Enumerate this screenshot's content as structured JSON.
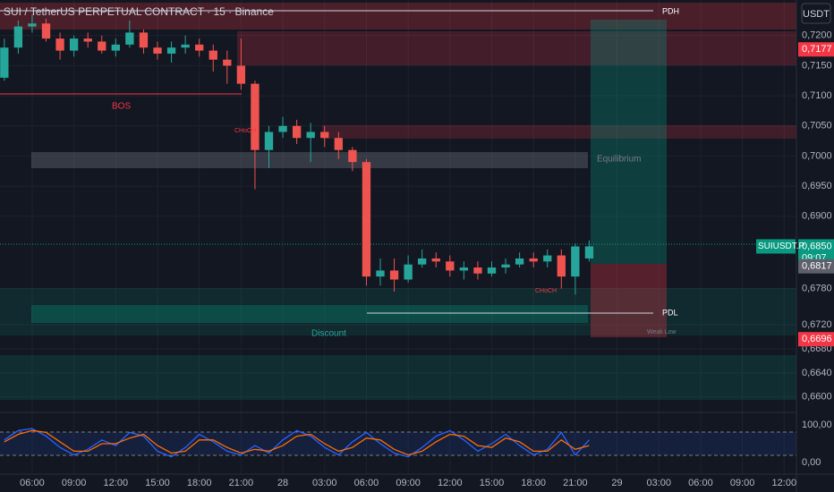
{
  "chart_data": [
    {
      "type": "candlestick",
      "title": "SUI / TetherUS PERPETUAL CONTRACT · 15 · Binance",
      "unit": "USDT",
      "symbol": "SUIUSDT.P",
      "countdown": "09:07",
      "up_color": "#26a69a",
      "down_color": "#ef5350",
      "x": [
        4,
        5,
        6,
        7,
        8,
        9,
        10,
        11,
        12,
        13,
        14,
        15,
        16,
        17,
        18,
        19,
        20,
        21,
        22,
        23,
        24,
        25,
        26,
        27,
        28,
        29,
        30,
        31,
        32,
        33,
        34,
        35,
        36,
        37,
        38,
        39,
        40,
        41,
        42,
        43,
        44,
        45,
        46
      ],
      "open": [
        0.713,
        0.718,
        0.7215,
        0.722,
        0.7195,
        0.7175,
        0.7195,
        0.719,
        0.7175,
        0.7185,
        0.7205,
        0.718,
        0.717,
        0.718,
        0.7185,
        0.7175,
        0.716,
        0.715,
        0.712,
        0.701,
        0.704,
        0.705,
        0.703,
        0.704,
        0.703,
        0.701,
        0.699,
        0.68,
        0.681,
        0.6795,
        0.682,
        0.683,
        0.6825,
        0.681,
        0.6815,
        0.6805,
        0.6815,
        0.682,
        0.683,
        0.6825,
        0.6835,
        0.68,
        0.683
      ],
      "high": [
        0.7195,
        0.7225,
        0.7235,
        0.7228,
        0.7205,
        0.72,
        0.7205,
        0.72,
        0.7195,
        0.7225,
        0.721,
        0.719,
        0.719,
        0.72,
        0.7195,
        0.7185,
        0.7175,
        0.7195,
        0.7125,
        0.705,
        0.7065,
        0.706,
        0.7055,
        0.705,
        0.704,
        0.7015,
        0.6995,
        0.683,
        0.683,
        0.6835,
        0.6845,
        0.684,
        0.6835,
        0.6825,
        0.6825,
        0.6825,
        0.683,
        0.684,
        0.684,
        0.6845,
        0.6845,
        0.6855,
        0.686
      ],
      "low": [
        0.7125,
        0.717,
        0.7205,
        0.719,
        0.716,
        0.7165,
        0.718,
        0.717,
        0.7165,
        0.718,
        0.717,
        0.716,
        0.7155,
        0.717,
        0.7165,
        0.714,
        0.712,
        0.711,
        0.6945,
        0.698,
        0.703,
        0.702,
        0.699,
        0.7015,
        0.6995,
        0.6975,
        0.6785,
        0.6785,
        0.6775,
        0.679,
        0.6815,
        0.6815,
        0.68,
        0.6795,
        0.6795,
        0.68,
        0.6805,
        0.6815,
        0.6815,
        0.6815,
        0.678,
        0.677,
        0.6825
      ],
      "close": [
        0.718,
        0.7215,
        0.722,
        0.7195,
        0.7175,
        0.7195,
        0.719,
        0.7175,
        0.7185,
        0.7205,
        0.718,
        0.717,
        0.718,
        0.7185,
        0.7175,
        0.716,
        0.715,
        0.712,
        0.701,
        0.704,
        0.705,
        0.703,
        0.704,
        0.703,
        0.701,
        0.699,
        0.68,
        0.681,
        0.6795,
        0.682,
        0.683,
        0.6825,
        0.681,
        0.6815,
        0.6805,
        0.6815,
        0.682,
        0.683,
        0.6825,
        0.6835,
        0.68,
        0.685,
        0.685
      ],
      "xlim": [
        3.69,
        60.88
      ],
      "ylim": [
        0.6576,
        0.7259
      ],
      "yticks": [
        {
          "value": 0.72,
          "label": "0,7200"
        },
        {
          "value": 0.715,
          "label": "0,7150"
        },
        {
          "value": 0.71,
          "label": "0,7100"
        },
        {
          "value": 0.705,
          "label": "0,7050"
        },
        {
          "value": 0.7,
          "label": "0,7000"
        },
        {
          "value": 0.695,
          "label": "0,6950"
        },
        {
          "value": 0.69,
          "label": "0,6900"
        },
        {
          "value": 0.678,
          "label": "0,6780"
        },
        {
          "value": 0.672,
          "label": "0,6720"
        },
        {
          "value": 0.668,
          "label": "0,6680"
        },
        {
          "value": 0.664,
          "label": "0,6640"
        },
        {
          "value": 0.66,
          "label": "0,6600"
        }
      ],
      "xticks": [
        {
          "value": 6,
          "label": "06:00"
        },
        {
          "value": 9,
          "label": "09:00"
        },
        {
          "value": 12,
          "label": "12:00"
        },
        {
          "value": 15,
          "label": "15:00"
        },
        {
          "value": 18,
          "label": "18:00"
        },
        {
          "value": 21,
          "label": "21:00"
        },
        {
          "value": 24,
          "label": "28"
        },
        {
          "value": 27,
          "label": "03:00"
        },
        {
          "value": 30,
          "label": "06:00"
        },
        {
          "value": 33,
          "label": "09:00"
        },
        {
          "value": 36,
          "label": "12:00"
        },
        {
          "value": 39,
          "label": "15:00"
        },
        {
          "value": 42,
          "label": "18:00"
        },
        {
          "value": 45,
          "label": "21:00"
        },
        {
          "value": 48,
          "label": "29"
        },
        {
          "value": 51,
          "label": "03:00"
        },
        {
          "value": 54,
          "label": "06:00"
        },
        {
          "value": 57,
          "label": "09:00"
        },
        {
          "value": 60,
          "label": "12:00"
        }
      ],
      "price_labels": [
        {
          "value": 0.7177,
          "label": "0,7177",
          "color": "#f23645"
        },
        {
          "value": 0.685,
          "label": "0,6850",
          "color": "#089981"
        },
        {
          "value": 0.6817,
          "label": "0,6817",
          "color": "#5d606b"
        },
        {
          "value": 0.6696,
          "label": "0,6696",
          "color": "#f23645"
        }
      ],
      "annotations": [
        "BOS",
        "CHoCH",
        "CHoCH",
        "Equilibrium",
        "Discount",
        "PDH",
        "PDL",
        "Weak Low"
      ],
      "grid": true
    },
    {
      "type": "line",
      "x": [
        4,
        5,
        6,
        7,
        8,
        9,
        10,
        11,
        12,
        13,
        14,
        15,
        16,
        17,
        18,
        19,
        20,
        21,
        22,
        23,
        24,
        25,
        26,
        27,
        28,
        29,
        30,
        31,
        32,
        33,
        34,
        35,
        36,
        37,
        38,
        39,
        40,
        41,
        42,
        43,
        44,
        45,
        46
      ],
      "series": [
        {
          "color": "#2962ff",
          "values": [
            60,
            85,
            90,
            70,
            40,
            20,
            35,
            60,
            45,
            80,
            70,
            30,
            15,
            40,
            75,
            55,
            30,
            20,
            45,
            25,
            60,
            85,
            70,
            40,
            20,
            55,
            80,
            50,
            25,
            15,
            40,
            70,
            85,
            60,
            30,
            50,
            75,
            45,
            20,
            35,
            80,
            20,
            60
          ]
        },
        {
          "color": "#ff6d00",
          "values": [
            55,
            75,
            85,
            80,
            55,
            30,
            30,
            50,
            50,
            65,
            75,
            45,
            25,
            30,
            60,
            60,
            40,
            25,
            35,
            30,
            45,
            70,
            75,
            50,
            30,
            40,
            65,
            60,
            35,
            20,
            30,
            55,
            75,
            70,
            45,
            40,
            65,
            55,
            30,
            30,
            60,
            35,
            45
          ]
        }
      ],
      "ylim": [
        -31,
        131
      ],
      "yticks": [
        {
          "value": 100,
          "label": "100,00"
        },
        {
          "value": 0,
          "label": "0,00"
        }
      ]
    }
  ]
}
